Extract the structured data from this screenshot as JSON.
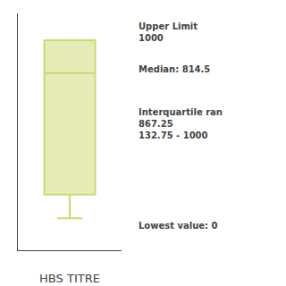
{
  "chart_data": {
    "type": "box",
    "xlabel": "HBS TITRE",
    "q1": 132.75,
    "median": 814.5,
    "q3": 1000,
    "whisker_low": 0,
    "whisker_high": 1000,
    "ylim": [
      -180,
      1150
    ],
    "tick_labels": false,
    "grid": false,
    "color": "#cdd96e",
    "annotations": [
      "Upper Limit\n1000",
      "Median: 814.5",
      "Interquartile ran\n867.25\n132.75 - 1000",
      "Lowest value: 0"
    ]
  }
}
